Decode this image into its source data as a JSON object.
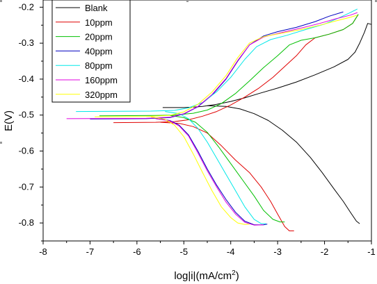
{
  "chart_data": {
    "type": "line",
    "title": "",
    "xlabel": "log|i|(mA/cm",
    "xlabel_sup": "2",
    "xlabel_close": ")",
    "ylabel": "E(V)",
    "xlim": [
      -8,
      -1
    ],
    "ylim": [
      -0.85,
      -0.18
    ],
    "xticks": [
      -8,
      -7,
      -6,
      -5,
      -4,
      -3,
      -2,
      -1
    ],
    "xtick_labels": [
      "-8",
      "-7",
      "-6",
      "-5",
      "-4",
      "-3",
      "-2",
      "-1"
    ],
    "yticks": [
      -0.8,
      -0.7,
      -0.6,
      -0.5,
      -0.4,
      -0.3,
      -0.2
    ],
    "ytick_labels": [
      "-0.8",
      "-0.7",
      "-0.6",
      "-0.5",
      "-0.4",
      "-0.3",
      "-0.2"
    ],
    "grid": false,
    "legend_position": "top-left",
    "series": [
      {
        "name": "Blank",
        "color": "#000000",
        "points": [
          [
            -5.45,
            -0.479
          ],
          [
            -5.0,
            -0.479
          ],
          [
            -4.8,
            -0.478
          ],
          [
            -4.6,
            -0.476
          ],
          [
            -4.5,
            -0.474
          ],
          [
            -4.3,
            -0.47
          ],
          [
            -4.0,
            -0.462
          ],
          [
            -3.7,
            -0.452
          ],
          [
            -3.4,
            -0.44
          ],
          [
            -3.0,
            -0.425
          ],
          [
            -2.6,
            -0.408
          ],
          [
            -2.2,
            -0.388
          ],
          [
            -1.8,
            -0.366
          ],
          [
            -1.5,
            -0.345
          ],
          [
            -1.35,
            -0.325
          ],
          [
            -1.25,
            -0.3
          ],
          [
            -1.15,
            -0.27
          ],
          [
            -1.08,
            -0.245
          ],
          [
            -1.0,
            -0.248
          ]
        ]
      },
      {
        "name": "Blank",
        "color": "#000000",
        "points": [
          [
            -4.5,
            -0.474
          ],
          [
            -4.1,
            -0.476
          ],
          [
            -3.8,
            -0.483
          ],
          [
            -3.5,
            -0.496
          ],
          [
            -3.2,
            -0.515
          ],
          [
            -2.9,
            -0.542
          ],
          [
            -2.6,
            -0.575
          ],
          [
            -2.3,
            -0.618
          ],
          [
            -2.05,
            -0.66
          ],
          [
            -1.8,
            -0.705
          ],
          [
            -1.6,
            -0.74
          ],
          [
            -1.45,
            -0.77
          ],
          [
            -1.32,
            -0.795
          ],
          [
            -1.25,
            -0.802
          ]
        ]
      },
      {
        "name": "10ppm",
        "color": "#e00000",
        "points": [
          [
            -6.5,
            -0.521
          ],
          [
            -5.6,
            -0.52
          ],
          [
            -5.2,
            -0.518
          ],
          [
            -4.9,
            -0.513
          ],
          [
            -4.6,
            -0.503
          ],
          [
            -4.3,
            -0.49
          ],
          [
            -4.0,
            -0.472
          ],
          [
            -3.7,
            -0.45
          ],
          [
            -3.4,
            -0.425
          ],
          [
            -3.1,
            -0.395
          ],
          [
            -2.85,
            -0.365
          ],
          [
            -2.6,
            -0.335
          ],
          [
            -2.4,
            -0.305
          ],
          [
            -2.2,
            -0.285
          ],
          [
            -1.9,
            -0.275
          ],
          [
            -1.6,
            -0.262
          ],
          [
            -1.4,
            -0.245
          ],
          [
            -1.28,
            -0.22
          ]
        ]
      },
      {
        "name": "10ppm",
        "color": "#e00000",
        "points": [
          [
            -5.5,
            -0.52
          ],
          [
            -5.1,
            -0.523
          ],
          [
            -4.8,
            -0.532
          ],
          [
            -4.5,
            -0.55
          ],
          [
            -4.2,
            -0.585
          ],
          [
            -3.9,
            -0.625
          ],
          [
            -3.6,
            -0.66
          ],
          [
            -3.35,
            -0.7
          ],
          [
            -3.15,
            -0.74
          ],
          [
            -3.0,
            -0.775
          ],
          [
            -2.85,
            -0.81
          ],
          [
            -2.75,
            -0.822
          ],
          [
            -2.65,
            -0.822
          ]
        ]
      },
      {
        "name": "20ppm",
        "color": "#00c000",
        "points": [
          [
            -6.8,
            -0.502
          ],
          [
            -5.6,
            -0.501
          ],
          [
            -5.2,
            -0.5
          ],
          [
            -4.8,
            -0.495
          ],
          [
            -4.5,
            -0.486
          ],
          [
            -4.2,
            -0.468
          ],
          [
            -3.9,
            -0.44
          ],
          [
            -3.6,
            -0.405
          ],
          [
            -3.3,
            -0.368
          ],
          [
            -3.0,
            -0.335
          ],
          [
            -2.75,
            -0.305
          ],
          [
            -2.5,
            -0.292
          ],
          [
            -2.2,
            -0.285
          ],
          [
            -1.9,
            -0.275
          ],
          [
            -1.6,
            -0.262
          ],
          [
            -1.4,
            -0.245
          ],
          [
            -1.28,
            -0.22
          ]
        ]
      },
      {
        "name": "20ppm",
        "color": "#00c000",
        "points": [
          [
            -5.3,
            -0.501
          ],
          [
            -5.0,
            -0.507
          ],
          [
            -4.75,
            -0.52
          ],
          [
            -4.5,
            -0.548
          ],
          [
            -4.25,
            -0.59
          ],
          [
            -4.0,
            -0.635
          ],
          [
            -3.75,
            -0.68
          ],
          [
            -3.5,
            -0.725
          ],
          [
            -3.3,
            -0.765
          ],
          [
            -3.1,
            -0.79
          ],
          [
            -2.95,
            -0.797
          ],
          [
            -2.85,
            -0.797
          ]
        ]
      },
      {
        "name": "40ppm",
        "color": "#0000c0",
        "points": [
          [
            -7.0,
            -0.511
          ],
          [
            -5.8,
            -0.51
          ],
          [
            -5.3,
            -0.507
          ],
          [
            -5.0,
            -0.497
          ],
          [
            -4.7,
            -0.477
          ],
          [
            -4.4,
            -0.445
          ],
          [
            -4.1,
            -0.4
          ],
          [
            -3.85,
            -0.35
          ],
          [
            -3.6,
            -0.305
          ],
          [
            -3.3,
            -0.28
          ],
          [
            -3.0,
            -0.268
          ],
          [
            -2.6,
            -0.256
          ],
          [
            -2.2,
            -0.24
          ],
          [
            -1.9,
            -0.225
          ],
          [
            -1.6,
            -0.213
          ]
        ]
      },
      {
        "name": "40ppm",
        "color": "#0000c0",
        "points": [
          [
            -5.6,
            -0.51
          ],
          [
            -5.3,
            -0.515
          ],
          [
            -5.1,
            -0.528
          ],
          [
            -4.9,
            -0.555
          ],
          [
            -4.7,
            -0.6
          ],
          [
            -4.5,
            -0.65
          ],
          [
            -4.3,
            -0.695
          ],
          [
            -4.1,
            -0.735
          ],
          [
            -3.9,
            -0.77
          ],
          [
            -3.7,
            -0.795
          ],
          [
            -3.5,
            -0.805
          ],
          [
            -3.3,
            -0.805
          ],
          [
            -3.22,
            -0.803
          ]
        ]
      },
      {
        "name": "80ppm",
        "color": "#00e8e8",
        "points": [
          [
            -7.3,
            -0.49
          ],
          [
            -5.7,
            -0.489
          ],
          [
            -5.2,
            -0.487
          ],
          [
            -4.9,
            -0.48
          ],
          [
            -4.6,
            -0.465
          ],
          [
            -4.3,
            -0.435
          ],
          [
            -4.0,
            -0.395
          ],
          [
            -3.7,
            -0.345
          ],
          [
            -3.45,
            -0.31
          ],
          [
            -3.15,
            -0.29
          ],
          [
            -2.8,
            -0.278
          ],
          [
            -2.4,
            -0.262
          ],
          [
            -2.0,
            -0.247
          ],
          [
            -1.7,
            -0.23
          ],
          [
            -1.45,
            -0.215
          ],
          [
            -1.3,
            -0.205
          ]
        ]
      },
      {
        "name": "80ppm",
        "color": "#00e8e8",
        "points": [
          [
            -5.4,
            -0.49
          ],
          [
            -5.1,
            -0.496
          ],
          [
            -4.9,
            -0.51
          ],
          [
            -4.7,
            -0.537
          ],
          [
            -4.5,
            -0.575
          ],
          [
            -4.3,
            -0.62
          ],
          [
            -4.1,
            -0.665
          ],
          [
            -3.9,
            -0.71
          ],
          [
            -3.7,
            -0.755
          ],
          [
            -3.5,
            -0.79
          ],
          [
            -3.35,
            -0.802
          ],
          [
            -3.25,
            -0.802
          ]
        ]
      },
      {
        "name": "160ppm",
        "color": "#e000e0",
        "points": [
          [
            -7.5,
            -0.51
          ],
          [
            -5.8,
            -0.509
          ],
          [
            -5.3,
            -0.506
          ],
          [
            -5.0,
            -0.496
          ],
          [
            -4.7,
            -0.476
          ],
          [
            -4.4,
            -0.443
          ],
          [
            -4.1,
            -0.398
          ],
          [
            -3.85,
            -0.348
          ],
          [
            -3.6,
            -0.305
          ],
          [
            -3.3,
            -0.283
          ],
          [
            -2.9,
            -0.27
          ],
          [
            -2.5,
            -0.258
          ],
          [
            -2.1,
            -0.245
          ],
          [
            -1.75,
            -0.232
          ],
          [
            -1.45,
            -0.222
          ],
          [
            -1.3,
            -0.215
          ]
        ]
      },
      {
        "name": "160ppm",
        "color": "#e000e0",
        "points": [
          [
            -5.6,
            -0.51
          ],
          [
            -5.3,
            -0.516
          ],
          [
            -5.1,
            -0.53
          ],
          [
            -4.9,
            -0.558
          ],
          [
            -4.7,
            -0.605
          ],
          [
            -4.5,
            -0.655
          ],
          [
            -4.3,
            -0.7
          ],
          [
            -4.1,
            -0.742
          ],
          [
            -3.9,
            -0.775
          ],
          [
            -3.7,
            -0.798
          ],
          [
            -3.5,
            -0.806
          ],
          [
            -3.3,
            -0.805
          ]
        ]
      },
      {
        "name": "320ppm",
        "color": "#ffff00",
        "points": [
          [
            -6.9,
            -0.505
          ],
          [
            -5.8,
            -0.504
          ],
          [
            -5.3,
            -0.501
          ],
          [
            -5.0,
            -0.491
          ],
          [
            -4.7,
            -0.47
          ],
          [
            -4.4,
            -0.436
          ],
          [
            -4.1,
            -0.39
          ],
          [
            -3.85,
            -0.34
          ],
          [
            -3.6,
            -0.3
          ],
          [
            -3.3,
            -0.282
          ],
          [
            -2.9,
            -0.272
          ],
          [
            -2.5,
            -0.262
          ],
          [
            -2.1,
            -0.25
          ],
          [
            -1.75,
            -0.238
          ],
          [
            -1.45,
            -0.228
          ],
          [
            -1.3,
            -0.222
          ]
        ]
      },
      {
        "name": "320ppm",
        "color": "#ffff00",
        "points": [
          [
            -5.7,
            -0.505
          ],
          [
            -5.4,
            -0.512
          ],
          [
            -5.2,
            -0.528
          ],
          [
            -5.0,
            -0.56
          ],
          [
            -4.8,
            -0.608
          ],
          [
            -4.6,
            -0.66
          ],
          [
            -4.4,
            -0.71
          ],
          [
            -4.2,
            -0.755
          ],
          [
            -4.0,
            -0.785
          ],
          [
            -3.85,
            -0.8
          ],
          [
            -3.7,
            -0.804
          ],
          [
            -3.6,
            -0.803
          ]
        ]
      }
    ],
    "legend": [
      {
        "label": "Blank",
        "color": "#000000"
      },
      {
        "label": "10ppm",
        "color": "#e00000"
      },
      {
        "label": "20ppm",
        "color": "#00c000"
      },
      {
        "label": "40ppm",
        "color": "#0000c0"
      },
      {
        "label": "80ppm",
        "color": "#00e8e8"
      },
      {
        "label": "160ppm",
        "color": "#e000e0"
      },
      {
        "label": "320ppm",
        "color": "#ffff00"
      }
    ]
  }
}
